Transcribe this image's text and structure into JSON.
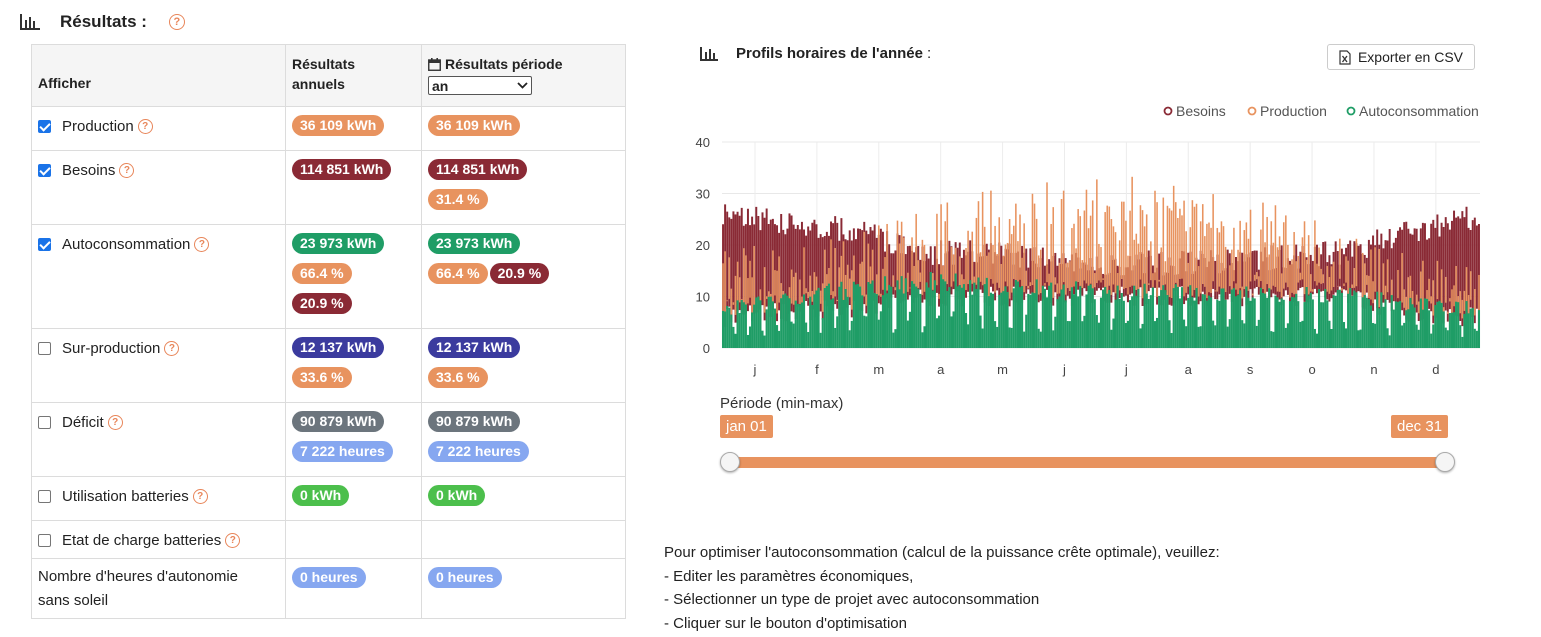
{
  "header": {
    "title": "Résultats :",
    "help": "?"
  },
  "table": {
    "col_show": "Afficher",
    "col_annual": "Résultats annuels",
    "col_annual_l1": "Résultats",
    "col_annual_l2": "annuels",
    "col_period": "Résultats période",
    "period_select": "an",
    "rows": [
      {
        "label": "Production",
        "checked": true,
        "help": true,
        "annual": [
          [
            {
              "t": "36 109 kWh",
              "c": "orange"
            }
          ]
        ],
        "period": [
          [
            {
              "t": "36 109 kWh",
              "c": "orange"
            }
          ]
        ]
      },
      {
        "label": "Besoins",
        "checked": true,
        "help": true,
        "annual": [
          [
            {
              "t": "114 851 kWh",
              "c": "maroon"
            }
          ]
        ],
        "period": [
          [
            {
              "t": "114 851 kWh",
              "c": "maroon"
            }
          ],
          [
            {
              "t": "31.4 %",
              "c": "orange"
            }
          ]
        ]
      },
      {
        "label": "Autoconsommation",
        "checked": true,
        "help": true,
        "annual": [
          [
            {
              "t": "23 973 kWh",
              "c": "green"
            }
          ],
          [
            {
              "t": "66.4 %",
              "c": "orange"
            }
          ],
          [
            {
              "t": "20.9 %",
              "c": "maroon"
            }
          ]
        ],
        "period": [
          [
            {
              "t": "23 973 kWh",
              "c": "green"
            }
          ],
          [
            {
              "t": "66.4 %",
              "c": "orange"
            },
            {
              "t": "20.9 %",
              "c": "maroon"
            }
          ]
        ]
      },
      {
        "label": "Sur-production",
        "checked": false,
        "help": true,
        "annual": [
          [
            {
              "t": "12 137 kWh",
              "c": "navy"
            }
          ],
          [
            {
              "t": "33.6 %",
              "c": "orange"
            }
          ]
        ],
        "period": [
          [
            {
              "t": "12 137 kWh",
              "c": "navy"
            }
          ],
          [
            {
              "t": "33.6 %",
              "c": "orange"
            }
          ]
        ]
      },
      {
        "label": "Déficit",
        "checked": false,
        "help": true,
        "annual": [
          [
            {
              "t": "90 879 kWh",
              "c": "gray"
            }
          ],
          [
            {
              "t": "7 222 heures",
              "c": "lblue"
            }
          ]
        ],
        "period": [
          [
            {
              "t": "90 879 kWh",
              "c": "gray"
            }
          ],
          [
            {
              "t": "7 222 heures",
              "c": "lblue"
            }
          ]
        ]
      },
      {
        "label": "Utilisation batteries",
        "checked": false,
        "help": true,
        "annual": [
          [
            {
              "t": "0 kWh",
              "c": "lgreen"
            }
          ]
        ],
        "period": [
          [
            {
              "t": "0 kWh",
              "c": "lgreen"
            }
          ]
        ]
      },
      {
        "label": "Etat de charge batteries",
        "checked": false,
        "help": true,
        "annual": [],
        "period": []
      },
      {
        "label": "Nombre d'heures d'autonomie sans soleil",
        "checked": null,
        "help": false,
        "label_l1": "Nombre d'heures d'autonomie",
        "label_l2": "sans soleil",
        "annual": [
          [
            {
              "t": "0 heures",
              "c": "lblue"
            }
          ]
        ],
        "period": [
          [
            {
              "t": "0 heures",
              "c": "lblue"
            }
          ]
        ]
      }
    ]
  },
  "chart_panel": {
    "title": "Profils horaires de l'année",
    "title_suffix": ":",
    "export_label": "Exporter en CSV",
    "period_label": "Période (min-max)",
    "range_min": "jan 01",
    "range_max": "dec 31"
  },
  "chart_data": {
    "type": "area",
    "series": [
      {
        "name": "Besoins",
        "color": "#8a2a35",
        "monthly_peak": [
          28,
          27,
          25,
          21,
          21,
          19,
          19,
          19,
          20,
          21,
          25,
          28
        ],
        "monthly_base": [
          8,
          9,
          10,
          12,
          12,
          12,
          12,
          12,
          12,
          12,
          9,
          8
        ]
      },
      {
        "name": "Production",
        "color": "#e8935f",
        "monthly_peak": [
          20,
          20,
          23,
          28,
          31,
          33,
          35,
          31,
          28,
          23,
          18,
          16
        ]
      },
      {
        "name": "Autoconsommation",
        "color": "#1f9d66",
        "monthly_peak": [
          9,
          11,
          14,
          15,
          14,
          13,
          13,
          12,
          12,
          12,
          10,
          9
        ]
      }
    ],
    "x_ticks": [
      "j",
      "f",
      "m",
      "a",
      "m",
      "j",
      "j",
      "a",
      "s",
      "o",
      "n",
      "d"
    ],
    "y_ticks": [
      0,
      10,
      20,
      30,
      40
    ],
    "ylim": [
      0,
      40
    ],
    "grid": true,
    "legend_position": "top-right"
  },
  "note": {
    "lines": [
      "Pour optimiser l'autoconsommation (calcul de la puissance crête optimale), veuillez:",
      "- Editer les paramètres économiques,",
      "- Sélectionner un type de projet avec autoconsommation",
      "- Cliquer sur le bouton d'optimisation"
    ]
  }
}
